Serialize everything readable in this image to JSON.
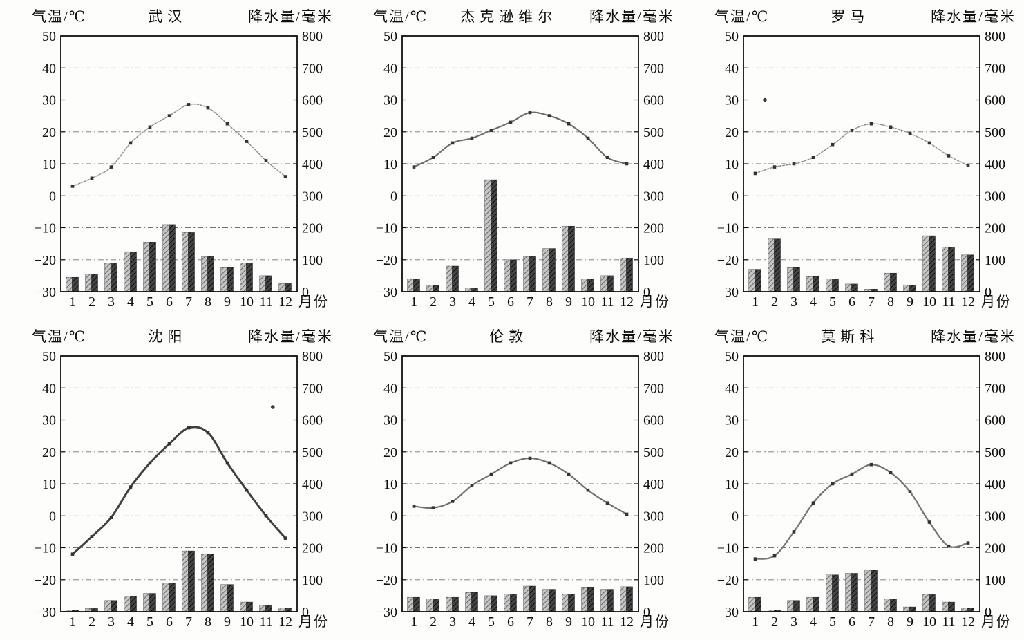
{
  "figure": {
    "kind": "scanned textbook climograph figure",
    "rows": 2,
    "cols": 3
  },
  "colors": {
    "background": "#fdfdfb",
    "axis": "#101010",
    "grid": "#4f4f4f",
    "text": "#0d0d0d",
    "marker": "#333333",
    "bar_light": "#c6c6c6",
    "bar_light_stripe": "#6f6f6f",
    "bar_dark": "#454545",
    "bar_dark_stripe": "#101010"
  },
  "chart_data": {
    "type": "line+bar",
    "shared": {
      "temp_axis_label": "气温/℃",
      "precip_axis_label": "降水量/毫米",
      "month_axis_label": "月份",
      "months": [
        1,
        2,
        3,
        4,
        5,
        6,
        7,
        8,
        9,
        10,
        11,
        12
      ],
      "temp_ticks": [
        50,
        40,
        30,
        20,
        10,
        0,
        -10,
        -20,
        -30
      ],
      "precip_ticks": [
        800,
        700,
        600,
        500,
        400,
        300,
        200,
        100,
        0
      ],
      "temp_range": [
        -30,
        50
      ],
      "precip_range": [
        0,
        800
      ],
      "gridlines": "horizontal dash-dot at every 10°C / 100 mm",
      "legend": "curve with square markers = monthly mean temperature (left axis), paired hatched bars = monthly precipitation (right axis)"
    },
    "charts": [
      {
        "city": "武汉",
        "temperature_c": [
          3,
          5.5,
          9,
          16.5,
          21.5,
          25,
          28.5,
          27.5,
          22.5,
          17,
          11,
          6
        ],
        "precipitation_mm": [
          45,
          55,
          90,
          125,
          155,
          210,
          185,
          110,
          75,
          90,
          50,
          25
        ],
        "line_style": {
          "width": 1.5,
          "color": "#8f8f8f",
          "dash": "2.6 2"
        },
        "artifact_dots": []
      },
      {
        "city": "杰克逊维尔",
        "temperature_c": [
          9,
          12,
          16.5,
          18,
          20.5,
          23,
          26,
          25,
          22.5,
          18,
          12,
          10
        ],
        "precipitation_mm": [
          40,
          20,
          80,
          12,
          350,
          100,
          110,
          135,
          205,
          40,
          50,
          105
        ],
        "line_style": {
          "width": 2.2,
          "color": "#6d6d6d",
          "dash": "3 1.6"
        },
        "artifact_dots": []
      },
      {
        "city": "罗马",
        "temperature_c": [
          7,
          9,
          10,
          12,
          16,
          20.5,
          22.5,
          21.5,
          19.5,
          16.5,
          12.5,
          9.5
        ],
        "precipitation_mm": [
          70,
          165,
          75,
          47,
          40,
          24,
          8,
          58,
          20,
          175,
          140,
          115
        ],
        "line_style": {
          "width": 1.5,
          "color": "#8f8f8f",
          "dash": "2.6 2"
        },
        "artifact_dots": [
          {
            "month": 1.5,
            "temp": 30
          }
        ]
      },
      {
        "city": "沈阳",
        "temperature_c": [
          -12,
          -6.5,
          -0.5,
          9,
          16.5,
          22.5,
          27.5,
          26,
          16.5,
          8,
          0,
          -7
        ],
        "precipitation_mm": [
          5,
          10,
          35,
          48,
          57,
          90,
          190,
          180,
          85,
          30,
          20,
          12
        ],
        "line_style": {
          "width": 3,
          "color": "#404040",
          "dash": ""
        },
        "artifact_dots": [
          {
            "month": 11.35,
            "temp": 34
          }
        ]
      },
      {
        "city": "伦敦",
        "temperature_c": [
          3,
          2.5,
          4.5,
          9.5,
          13,
          16.5,
          18,
          16.5,
          13,
          8,
          4,
          0.5
        ],
        "precipitation_mm": [
          45,
          40,
          45,
          60,
          50,
          55,
          80,
          70,
          55,
          75,
          70,
          78
        ],
        "line_style": {
          "width": 2.2,
          "color": "#6d6d6d",
          "dash": "3 1.6"
        },
        "artifact_dots": []
      },
      {
        "city": "莫斯科",
        "temperature_c": [
          -13.5,
          -12.5,
          -5,
          4,
          10,
          13,
          16,
          13.5,
          7.5,
          -2,
          -9.5,
          -8.5
        ],
        "precipitation_mm": [
          45,
          5,
          35,
          45,
          115,
          120,
          130,
          40,
          15,
          55,
          30,
          12
        ],
        "line_style": {
          "width": 2.4,
          "color": "#767676",
          "dash": "3 1.6"
        },
        "artifact_dots": []
      }
    ]
  }
}
